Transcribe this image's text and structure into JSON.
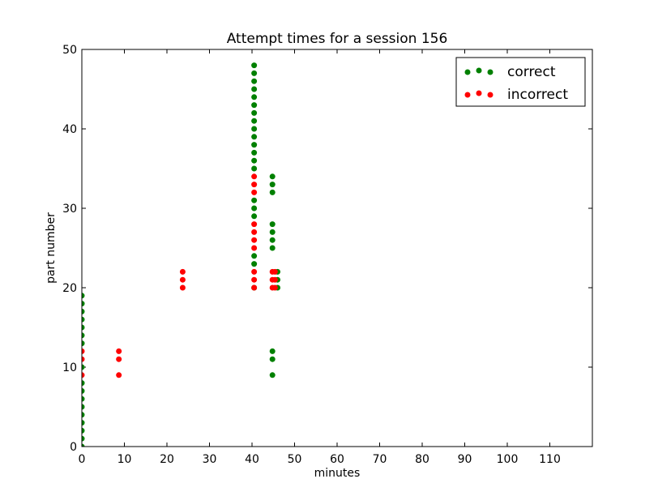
{
  "chart_data": {
    "type": "scatter",
    "title": "Attempt times for a session 156",
    "xlabel": "minutes",
    "ylabel": "part number",
    "xlim": [
      0,
      120
    ],
    "ylim": [
      0,
      50
    ],
    "xticks": [
      0,
      10,
      20,
      30,
      40,
      50,
      60,
      70,
      80,
      90,
      100,
      110
    ],
    "yticks": [
      0,
      10,
      20,
      30,
      40,
      50
    ],
    "grid": false,
    "legend_position": "top-right",
    "series": [
      {
        "name": "correct",
        "color": "#008000",
        "points": [
          [
            0,
            0
          ],
          [
            0,
            1
          ],
          [
            0,
            2
          ],
          [
            0,
            3
          ],
          [
            0,
            4
          ],
          [
            0,
            5
          ],
          [
            0,
            6
          ],
          [
            0,
            7
          ],
          [
            0,
            8
          ],
          [
            0,
            10
          ],
          [
            0,
            13
          ],
          [
            0,
            14
          ],
          [
            0,
            15
          ],
          [
            0,
            16
          ],
          [
            0,
            17
          ],
          [
            0,
            18
          ],
          [
            0,
            19
          ],
          [
            40.5,
            20
          ],
          [
            40.5,
            23
          ],
          [
            40.5,
            24
          ],
          [
            40.5,
            29
          ],
          [
            40.5,
            30
          ],
          [
            40.5,
            31
          ],
          [
            40.5,
            35
          ],
          [
            40.5,
            36
          ],
          [
            40.5,
            37
          ],
          [
            40.5,
            38
          ],
          [
            40.5,
            39
          ],
          [
            40.5,
            40
          ],
          [
            40.5,
            41
          ],
          [
            40.5,
            42
          ],
          [
            40.5,
            43
          ],
          [
            40.5,
            44
          ],
          [
            40.5,
            45
          ],
          [
            40.5,
            46
          ],
          [
            40.5,
            47
          ],
          [
            40.5,
            48
          ],
          [
            44.8,
            9
          ],
          [
            44.8,
            11
          ],
          [
            44.8,
            12
          ],
          [
            44.8,
            25
          ],
          [
            44.8,
            26
          ],
          [
            44.8,
            27
          ],
          [
            44.8,
            28
          ],
          [
            44.8,
            32
          ],
          [
            44.8,
            33
          ],
          [
            44.8,
            34
          ],
          [
            46.0,
            20
          ],
          [
            46.0,
            21
          ],
          [
            46.0,
            22
          ]
        ]
      },
      {
        "name": "incorrect",
        "color": "#ff0000",
        "points": [
          [
            0,
            9
          ],
          [
            0,
            11
          ],
          [
            0,
            12
          ],
          [
            8.7,
            9
          ],
          [
            8.7,
            11
          ],
          [
            8.7,
            12
          ],
          [
            23.7,
            20
          ],
          [
            23.7,
            21
          ],
          [
            23.7,
            22
          ],
          [
            40.5,
            20
          ],
          [
            40.5,
            21
          ],
          [
            40.5,
            22
          ],
          [
            40.5,
            25
          ],
          [
            40.5,
            26
          ],
          [
            40.5,
            27
          ],
          [
            40.5,
            28
          ],
          [
            40.5,
            32
          ],
          [
            40.5,
            33
          ],
          [
            40.5,
            34
          ],
          [
            44.8,
            20
          ],
          [
            44.8,
            21
          ],
          [
            44.8,
            22
          ],
          [
            45.4,
            20
          ],
          [
            45.4,
            21
          ],
          [
            45.4,
            22
          ]
        ]
      }
    ]
  }
}
